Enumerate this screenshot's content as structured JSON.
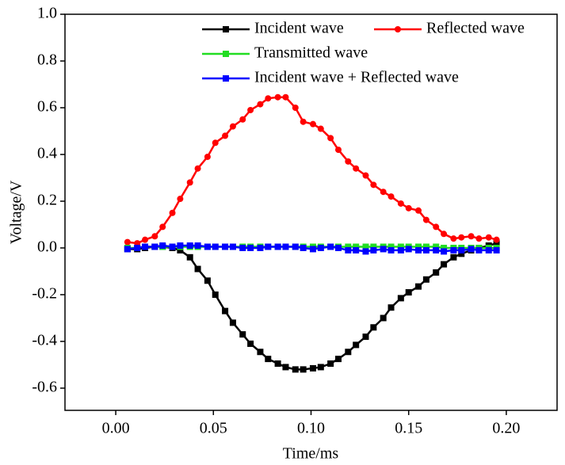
{
  "chart_data": {
    "type": "line",
    "xlabel": "Time/ms",
    "ylabel": "Voltage/V",
    "x": [
      0.006,
      0.011,
      0.015,
      0.02,
      0.024,
      0.029,
      0.033,
      0.038,
      0.042,
      0.047,
      0.051,
      0.056,
      0.06,
      0.065,
      0.069,
      0.074,
      0.078,
      0.083,
      0.087,
      0.092,
      0.096,
      0.101,
      0.105,
      0.11,
      0.114,
      0.119,
      0.123,
      0.128,
      0.132,
      0.137,
      0.141,
      0.146,
      0.15,
      0.155,
      0.159,
      0.164,
      0.168,
      0.173,
      0.177,
      0.182,
      0.186,
      0.191,
      0.195
    ],
    "series": [
      {
        "name": "Incident wave",
        "color": "#000000",
        "marker": "square",
        "values": [
          -0.005,
          -0.005,
          0.0,
          0.005,
          0.005,
          0.0,
          -0.01,
          -0.04,
          -0.09,
          -0.14,
          -0.2,
          -0.27,
          -0.32,
          -0.37,
          -0.41,
          -0.445,
          -0.475,
          -0.495,
          -0.51,
          -0.52,
          -0.52,
          -0.515,
          -0.51,
          -0.495,
          -0.475,
          -0.445,
          -0.415,
          -0.38,
          -0.34,
          -0.3,
          -0.255,
          -0.215,
          -0.19,
          -0.165,
          -0.135,
          -0.105,
          -0.07,
          -0.04,
          -0.025,
          -0.01,
          0.0,
          0.01,
          0.02
        ]
      },
      {
        "name": "Reflected wave",
        "color": "#ff0000",
        "marker": "circle",
        "values": [
          0.025,
          0.02,
          0.035,
          0.05,
          0.09,
          0.15,
          0.21,
          0.28,
          0.34,
          0.39,
          0.45,
          0.48,
          0.52,
          0.55,
          0.59,
          0.615,
          0.64,
          0.645,
          0.645,
          0.6,
          0.54,
          0.53,
          0.51,
          0.47,
          0.42,
          0.37,
          0.34,
          0.31,
          0.27,
          0.24,
          0.22,
          0.19,
          0.17,
          0.16,
          0.12,
          0.09,
          0.06,
          0.04,
          0.045,
          0.05,
          0.04,
          0.045,
          0.035
        ]
      },
      {
        "name": "Transmitted wave",
        "color": "#22dd22",
        "marker": "square",
        "values": [
          0.0,
          0.0,
          0.005,
          0.005,
          0.005,
          0.005,
          0.005,
          0.005,
          0.005,
          0.005,
          0.005,
          0.005,
          0.005,
          0.005,
          0.005,
          0.005,
          0.005,
          0.005,
          0.005,
          0.005,
          0.005,
          0.005,
          0.005,
          0.005,
          0.005,
          0.005,
          0.005,
          0.005,
          0.005,
          0.005,
          0.005,
          0.005,
          0.005,
          0.005,
          0.005,
          0.005,
          0.0,
          0.0,
          0.0,
          0.0,
          0.0,
          0.0,
          0.0
        ]
      },
      {
        "name": "Incident wave + Reflected wave",
        "color": "#0000ff",
        "marker": "square",
        "values": [
          -0.005,
          0.0,
          0.005,
          0.005,
          0.01,
          0.005,
          0.01,
          0.01,
          0.01,
          0.005,
          0.005,
          0.005,
          0.005,
          0.0,
          0.0,
          0.0,
          0.005,
          0.005,
          0.005,
          0.005,
          0.0,
          -0.005,
          0.0,
          0.005,
          0.0,
          -0.01,
          -0.01,
          -0.015,
          -0.01,
          -0.005,
          -0.01,
          -0.01,
          -0.005,
          -0.01,
          -0.01,
          -0.01,
          -0.015,
          -0.01,
          -0.01,
          -0.005,
          -0.01,
          -0.01,
          -0.01
        ]
      }
    ],
    "xlim": [
      -0.026,
      0.226
    ],
    "xticks": [
      {
        "value": 0,
        "label": "0.00"
      },
      {
        "value": 0.05,
        "label": "0.05"
      },
      {
        "value": 0.1,
        "label": "0.10"
      },
      {
        "value": 0.15,
        "label": "0.15"
      },
      {
        "value": 0.2,
        "label": "0.20"
      }
    ],
    "ylim": [
      -0.695,
      1.0
    ],
    "yticks": [
      {
        "value": -0.6,
        "label": "-0.6"
      },
      {
        "value": -0.4,
        "label": "-0.4"
      },
      {
        "value": -0.2,
        "label": "-0.2"
      },
      {
        "value": 0,
        "label": "0.0"
      },
      {
        "value": 0.2,
        "label": "0.2"
      },
      {
        "value": 0.4,
        "label": "0.4"
      },
      {
        "value": 0.6,
        "label": "0.6"
      },
      {
        "value": 0.8,
        "label": "0.8"
      },
      {
        "value": 1.0,
        "label": "1.0"
      }
    ],
    "legend": "top-right",
    "grid": false
  }
}
